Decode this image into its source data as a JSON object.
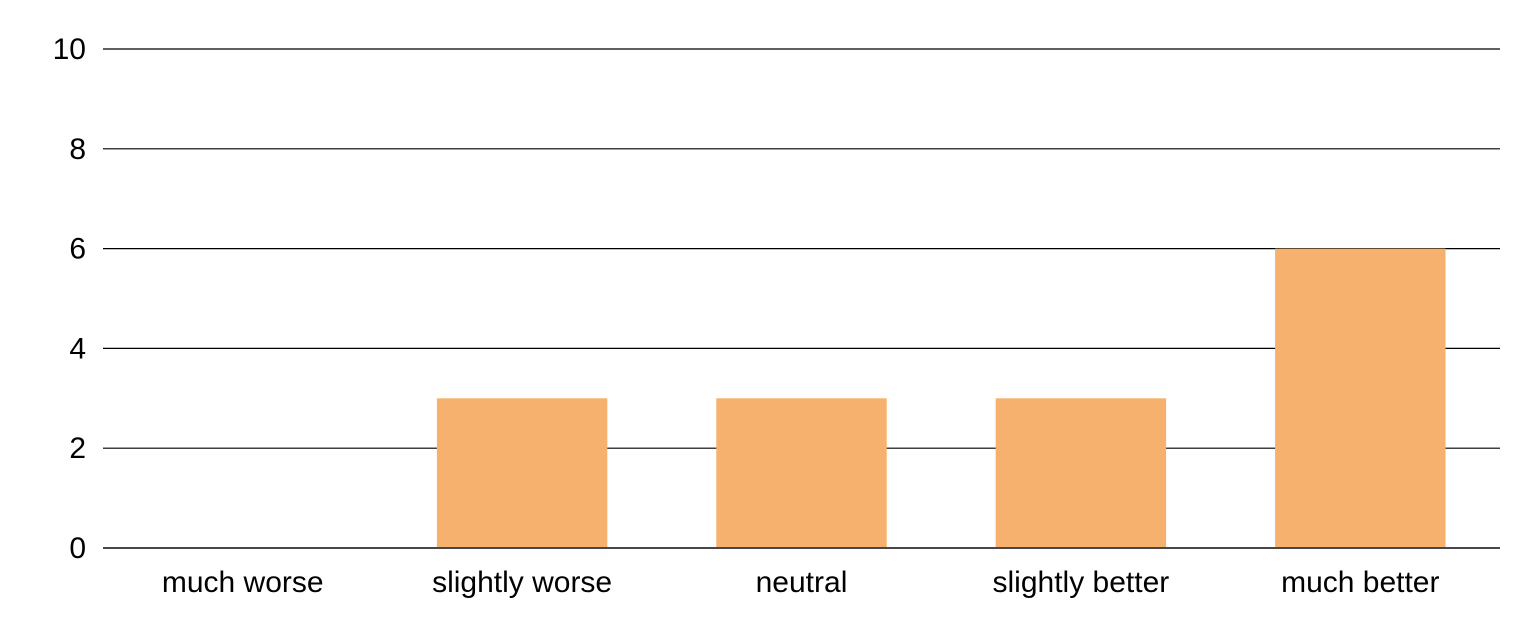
{
  "chart_data": {
    "type": "bar",
    "categories": [
      "much worse",
      "slightly worse",
      "neutral",
      "slightly better",
      "much better"
    ],
    "values": [
      0,
      3,
      3,
      3,
      6
    ],
    "ylim": [
      0,
      10
    ],
    "yticks": [
      0,
      2,
      4,
      6,
      8,
      10
    ],
    "grid": true,
    "legend": "none",
    "title": "",
    "xlabel": "",
    "ylabel": "",
    "colors": {
      "bar": "#F5B16D",
      "grid": "#000000",
      "text": "#000000"
    }
  }
}
